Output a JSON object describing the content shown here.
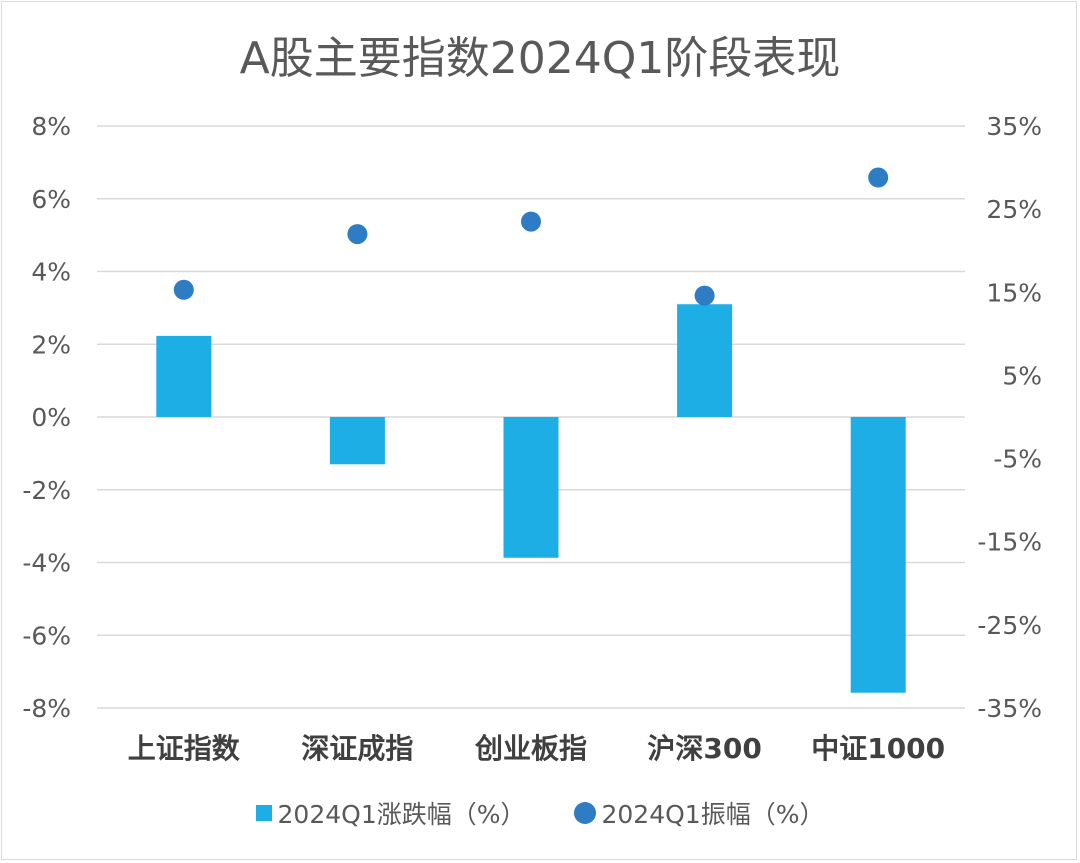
{
  "chart_data": {
    "type": "bar",
    "title": "A股主要指数2024Q1阶段表现",
    "categories": [
      "上证指数",
      "深证成指",
      "创业板指",
      "沪深300",
      "中证1000"
    ],
    "series": [
      {
        "name": "2024Q1涨跌幅（%）",
        "type": "bar",
        "axis": "left",
        "values": [
          2.23,
          -1.3,
          -3.87,
          3.1,
          -7.58
        ]
      },
      {
        "name": "2024Q1振幅（%）",
        "type": "scatter",
        "axis": "right",
        "values": [
          15.3,
          22.0,
          23.5,
          14.6,
          28.8
        ]
      }
    ],
    "y_left": {
      "lim": [
        -8,
        8
      ],
      "ticks": [
        "8%",
        "6%",
        "4%",
        "2%",
        "0%",
        "-2%",
        "-4%",
        "-6%",
        "-8%"
      ]
    },
    "y_right": {
      "lim": [
        -35,
        35
      ],
      "ticks": [
        "35%",
        "25%",
        "15%",
        "5%",
        "-5%",
        "-15%",
        "-25%",
        "-35%"
      ]
    },
    "grid": true,
    "legend_position": "bottom",
    "colors": {
      "bar": "#1daee6",
      "dot": "#2e7dc4",
      "grid": "#d9d9d9"
    }
  }
}
